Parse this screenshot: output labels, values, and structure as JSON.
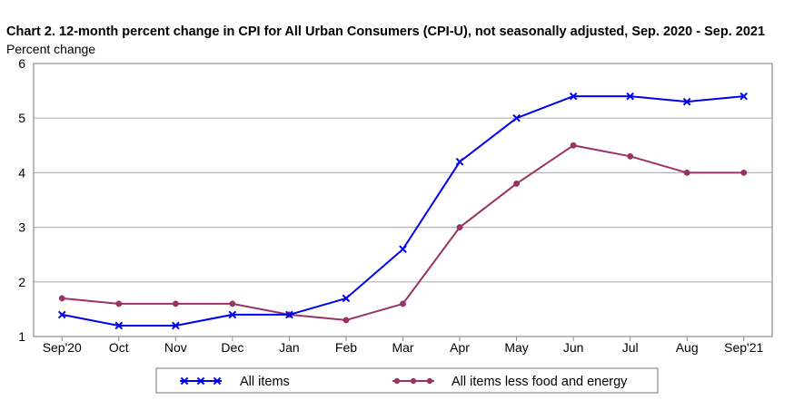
{
  "chart_data": {
    "type": "line",
    "title": "Chart 2. 12-month percent change in CPI for All Urban Consumers (CPI-U), not seasonally adjusted, Sep. 2020 - Sep. 2021",
    "ylabel": "Percent change",
    "xlabel": "",
    "ylim": [
      1,
      6
    ],
    "yticks": [
      1,
      2,
      3,
      4,
      5,
      6
    ],
    "grid": true,
    "legend_position": "bottom",
    "categories": [
      "Sep'20",
      "Oct",
      "Nov",
      "Dec",
      "Jan",
      "Feb",
      "Mar",
      "Apr",
      "May",
      "Jun",
      "Jul",
      "Aug",
      "Sep'21"
    ],
    "series": [
      {
        "name": "All items",
        "color": "#0000ee",
        "marker": "x",
        "values": [
          1.4,
          1.2,
          1.2,
          1.4,
          1.4,
          1.7,
          2.6,
          4.2,
          5.0,
          5.4,
          5.4,
          5.3,
          5.4
        ]
      },
      {
        "name": "All items less food and energy",
        "color": "#993366",
        "marker": "circle",
        "values": [
          1.7,
          1.6,
          1.6,
          1.6,
          1.4,
          1.3,
          1.6,
          3.0,
          3.8,
          4.5,
          4.3,
          4.0,
          4.0
        ]
      }
    ]
  }
}
